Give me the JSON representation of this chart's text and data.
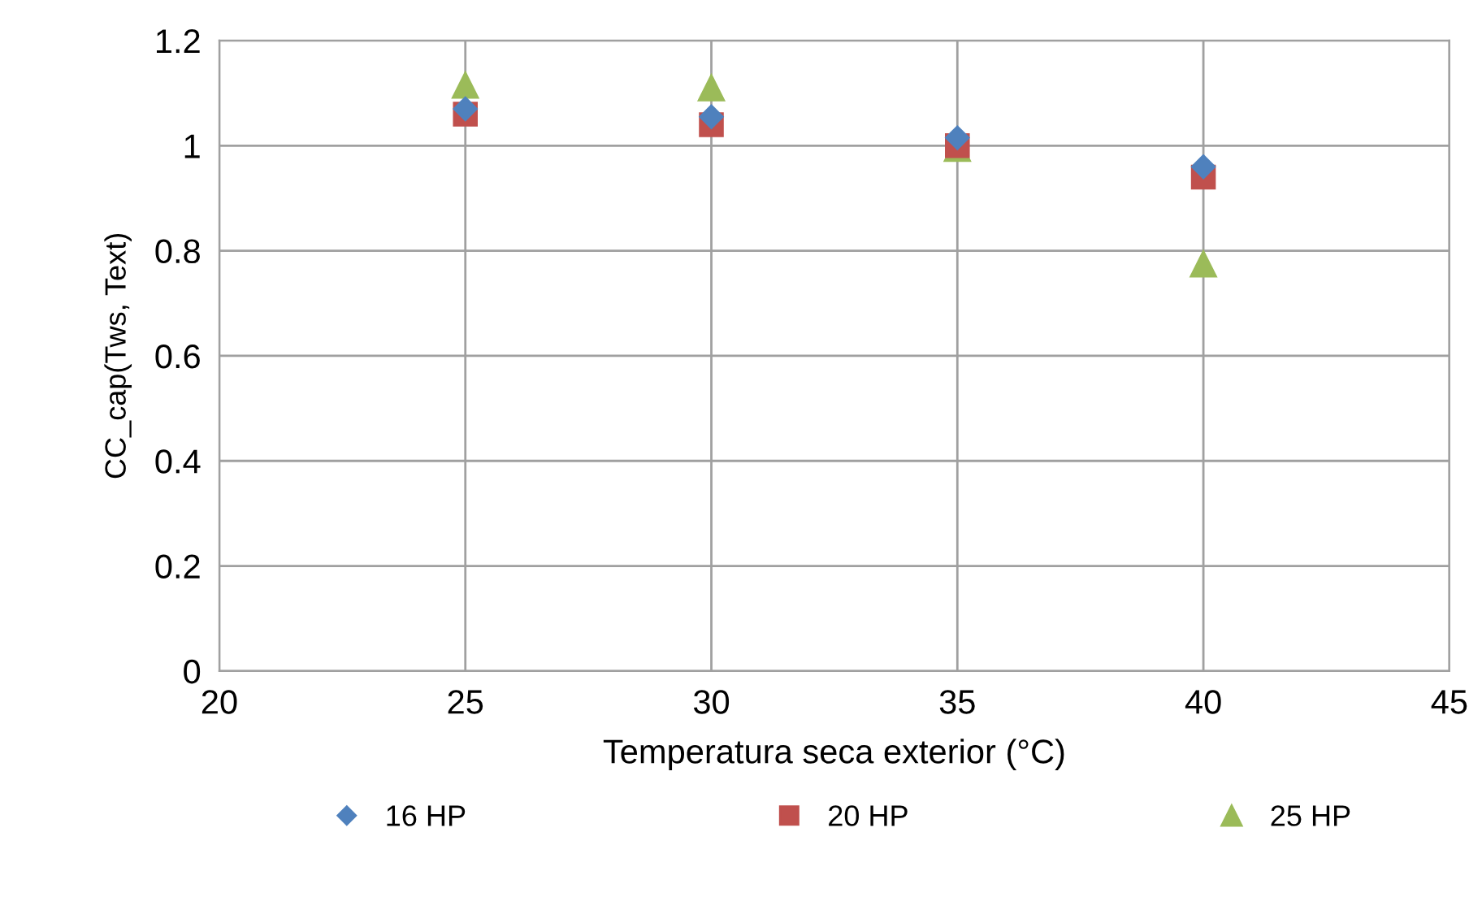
{
  "chart_data": {
    "type": "scatter",
    "xlabel": "Temperatura seca exterior (°C)",
    "ylabel": "CC_cap(Tws, Text)",
    "x": [
      25,
      30,
      35,
      40
    ],
    "series": [
      {
        "name": "16 HP",
        "color": "#4f81bd",
        "marker": "diamond",
        "values": [
          1.07,
          1.055,
          1.015,
          0.96
        ]
      },
      {
        "name": "20 HP",
        "color": "#c0504d",
        "marker": "square",
        "values": [
          1.06,
          1.04,
          1.0,
          0.94
        ]
      },
      {
        "name": "25 HP",
        "color": "#9bbb59",
        "marker": "triangle",
        "values": [
          1.115,
          1.11,
          0.995,
          0.775
        ]
      }
    ],
    "xlim": [
      20,
      45
    ],
    "xticks": [
      20,
      25,
      30,
      35,
      40,
      45
    ],
    "ylim": [
      0,
      1.2
    ],
    "yticks": [
      0,
      0.2,
      0.4,
      0.6,
      0.8,
      1,
      1.2
    ],
    "grid": true,
    "legend": "bottom"
  }
}
